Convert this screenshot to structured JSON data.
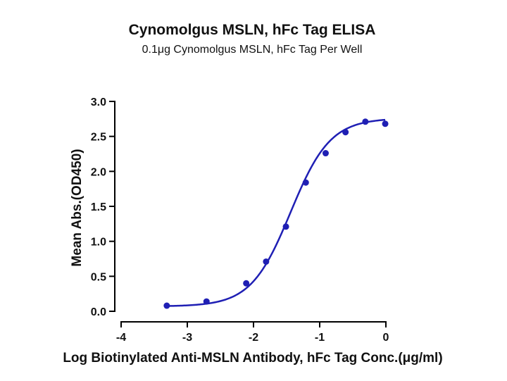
{
  "chart_data": {
    "type": "scatter",
    "title": "Cynomolgus MSLN, hFc Tag ELISA",
    "subtitle": "0.1μg Cynomolgus MSLN, hFc Tag Per Well",
    "xlabel": "Log Biotinylated Anti-MSLN Antibody, hFc Tag Conc.(μg/ml)",
    "ylabel": "Mean Abs.(OD450)",
    "xlim": [
      -4,
      0
    ],
    "ylim": [
      0,
      3.0
    ],
    "x_ticks": [
      "-4",
      "-3",
      "-2",
      "-1",
      "0"
    ],
    "y_ticks": [
      "0.0",
      "0.5",
      "1.0",
      "1.5",
      "2.0",
      "2.5",
      "3.0"
    ],
    "grid": false,
    "legend": "none",
    "color": "#1f1fb4",
    "series": [
      {
        "x": [
          -3.31,
          -2.71,
          -2.11,
          -1.81,
          -1.51,
          -1.21,
          -0.91,
          -0.61,
          -0.31,
          -0.01
        ],
        "y": [
          0.08,
          0.14,
          0.4,
          0.71,
          1.21,
          1.84,
          2.26,
          2.56,
          2.71,
          2.68
        ],
        "fit": "4PL",
        "fit_params": {
          "bottom": 0.07,
          "top": 2.76,
          "logEC50": -1.44,
          "hill": 1.45
        }
      }
    ]
  }
}
